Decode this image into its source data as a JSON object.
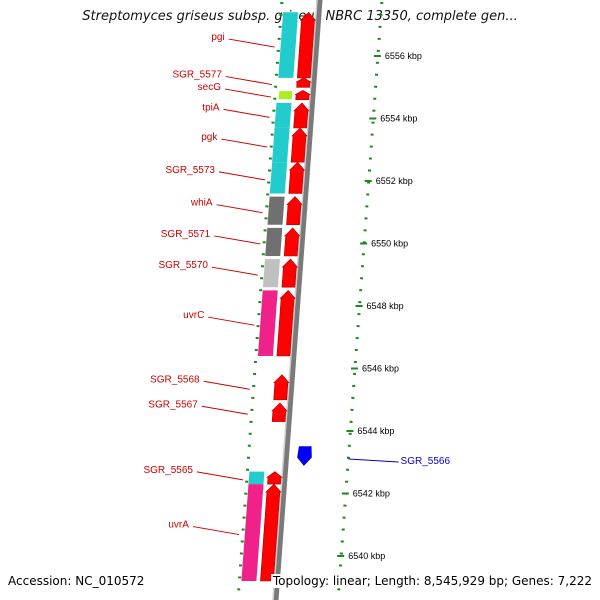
{
  "header": {
    "title": "Streptomyces griseus subsp. griseus NBRC 13350, complete gen..."
  },
  "footer": {
    "accession": "Accession: NC_010572",
    "summary": "Topology: linear; Length: 8,545,929 bp; Genes: 7,222"
  },
  "colors": {
    "backbone": "#7a7a7a",
    "minus_strand": "#ff0000",
    "plus_strand": "#0000ff",
    "minus_label": "#cc0000",
    "plus_label": "#0000cc",
    "scale_ticks": "#1a8a1a",
    "category_cyan": "#22cccc",
    "category_gray": "#707070",
    "category_lightgray": "#c0c0c0",
    "category_magenta": "#ee2288",
    "category_lime": "#aaee22"
  },
  "scale": {
    "unit": "kbp",
    "ticks": [
      {
        "kbp": 6556,
        "label": "6556 kbp"
      },
      {
        "kbp": 6554,
        "label": "6554 kbp"
      },
      {
        "kbp": 6552,
        "label": "6552 kbp"
      },
      {
        "kbp": 6550,
        "label": "6550 kbp"
      },
      {
        "kbp": 6548,
        "label": "6548 kbp"
      },
      {
        "kbp": 6546,
        "label": "6546 kbp"
      },
      {
        "kbp": 6544,
        "label": "6544 kbp"
      },
      {
        "kbp": 6542,
        "label": "6542 kbp"
      },
      {
        "kbp": 6540,
        "label": "6540 kbp"
      }
    ]
  },
  "genes": [
    {
      "name": "pgi",
      "strand": "minus",
      "category": "cyan",
      "start_kbp": 6555.3,
      "end_kbp": 6557.4
    },
    {
      "name": "SGR_5577",
      "strand": "minus",
      "category": "none",
      "start_kbp": 6555.0,
      "end_kbp": 6555.3
    },
    {
      "name": "secG",
      "strand": "minus",
      "category": "lime",
      "start_kbp": 6554.6,
      "end_kbp": 6554.9
    },
    {
      "name": "tpiA",
      "strand": "minus",
      "category": "cyan",
      "start_kbp": 6553.7,
      "end_kbp": 6554.5
    },
    {
      "name": "pgk",
      "strand": "minus",
      "category": "cyan",
      "start_kbp": 6552.6,
      "end_kbp": 6553.7
    },
    {
      "name": "SGR_5573",
      "strand": "minus",
      "category": "cyan",
      "start_kbp": 6551.6,
      "end_kbp": 6552.6
    },
    {
      "name": "whiA",
      "strand": "minus",
      "category": "gray",
      "start_kbp": 6550.6,
      "end_kbp": 6551.5
    },
    {
      "name": "SGR_5571",
      "strand": "minus",
      "category": "gray",
      "start_kbp": 6549.6,
      "end_kbp": 6550.5
    },
    {
      "name": "SGR_5570",
      "strand": "minus",
      "category": "lightgray",
      "start_kbp": 6548.6,
      "end_kbp": 6549.5
    },
    {
      "name": "uvrC",
      "strand": "minus",
      "category": "magenta",
      "start_kbp": 6546.4,
      "end_kbp": 6548.5
    },
    {
      "name": "SGR_5568",
      "strand": "minus",
      "category": "none",
      "start_kbp": 6545.0,
      "end_kbp": 6545.8
    },
    {
      "name": "SGR_5567",
      "strand": "minus",
      "category": "none",
      "start_kbp": 6544.3,
      "end_kbp": 6544.9
    },
    {
      "name": "SGR_5566",
      "strand": "plus",
      "category": "none",
      "start_kbp": 6542.9,
      "end_kbp": 6543.5
    },
    {
      "name": "SGR_5565",
      "strand": "minus",
      "category": "cyan",
      "start_kbp": 6542.3,
      "end_kbp": 6542.7
    },
    {
      "name": "uvrA",
      "strand": "minus",
      "category": "magenta",
      "start_kbp": 6539.2,
      "end_kbp": 6542.3
    }
  ]
}
